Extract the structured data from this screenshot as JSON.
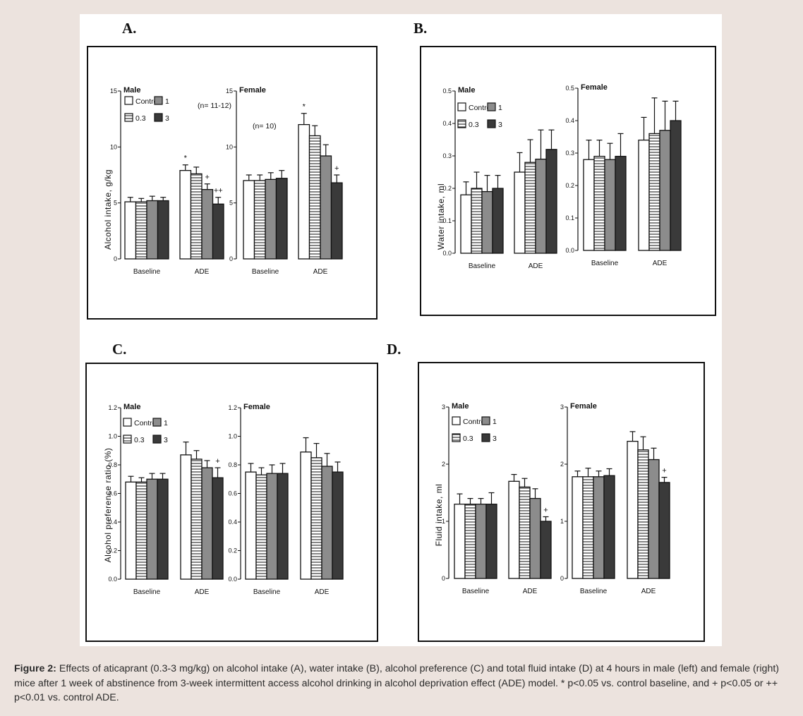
{
  "figure": {
    "caption_label": "Figure 2:",
    "caption_text": "Effects of aticaprant (0.3-3 mg/kg) on alcohol intake (A), water intake (B), alcohol preference (C) and total fluid intake (D) at 4 hours in male (left) and female (right) mice after 1 week of abstinence from 3-week intermittent access alcohol drinking in alcohol deprivation effect (ADE) model. * p<0.05 vs. control baseline, and + p<0.05 or ++ p<0.01 vs. control ADE."
  },
  "colors": {
    "control": "#ffffff",
    "d03": "#ffffff",
    "d1": "#8c8c8c",
    "d3": "#3a3a3a",
    "stroke": "#111111"
  },
  "chart_data": [
    {
      "panel": "A.",
      "type": "bar",
      "ylabel": "Alcohol intake, g/kg",
      "ylim": [
        0,
        15
      ],
      "yticks": [
        "0",
        "5",
        "10",
        "15"
      ],
      "categories": [
        "Baseline",
        "ADE"
      ],
      "legend_entries": [
        "Control",
        "0.3",
        "1",
        "3"
      ],
      "subplots": [
        {
          "title": "Male",
          "note": "(n= 11-12)",
          "series": [
            {
              "values": [
                5.1,
                7.9
              ],
              "errors": [
                0.4,
                0.5
              ]
            },
            {
              "values": [
                5.1,
                7.6
              ],
              "errors": [
                0.3,
                0.6
              ]
            },
            {
              "values": [
                5.2,
                6.2
              ],
              "errors": [
                0.4,
                0.5
              ]
            },
            {
              "values": [
                5.2,
                4.9
              ],
              "errors": [
                0.3,
                0.6
              ]
            }
          ],
          "annotations": [
            [
              "",
              "*"
            ],
            [
              "",
              ""
            ],
            [
              "",
              "+"
            ],
            [
              "",
              "++"
            ]
          ]
        },
        {
          "title": "Female",
          "note": "(n= 10)",
          "series": [
            {
              "values": [
                7.0,
                12.0
              ],
              "errors": [
                0.5,
                1.0
              ]
            },
            {
              "values": [
                7.0,
                11.0
              ],
              "errors": [
                0.5,
                0.9
              ]
            },
            {
              "values": [
                7.1,
                9.2
              ],
              "errors": [
                0.6,
                1.0
              ]
            },
            {
              "values": [
                7.2,
                6.8
              ],
              "errors": [
                0.7,
                0.7
              ]
            }
          ],
          "annotations": [
            [
              "",
              "*"
            ],
            [
              "",
              ""
            ],
            [
              "",
              ""
            ],
            [
              "",
              "+"
            ]
          ]
        }
      ]
    },
    {
      "panel": "B.",
      "type": "bar",
      "ylabel": "Water intake, ml",
      "ylim": [
        0,
        0.5
      ],
      "yticks": [
        "0.0",
        "0.1",
        "0.2",
        "0.3",
        "0.4",
        "0.5"
      ],
      "categories": [
        "Baseline",
        "ADE"
      ],
      "legend_entries": [
        "Control",
        "0.3",
        "1",
        "3"
      ],
      "subplots": [
        {
          "title": "Male",
          "note": "",
          "series": [
            {
              "values": [
                0.18,
                0.25
              ],
              "errors": [
                0.04,
                0.06
              ]
            },
            {
              "values": [
                0.2,
                0.28
              ],
              "errors": [
                0.05,
                0.07
              ]
            },
            {
              "values": [
                0.19,
                0.29
              ],
              "errors": [
                0.05,
                0.09
              ]
            },
            {
              "values": [
                0.2,
                0.32
              ],
              "errors": [
                0.04,
                0.06
              ]
            }
          ],
          "annotations": [
            [
              "",
              ""
            ],
            [
              "",
              ""
            ],
            [
              "",
              ""
            ],
            [
              "",
              ""
            ]
          ]
        },
        {
          "title": "Female",
          "note": "",
          "series": [
            {
              "values": [
                0.28,
                0.34
              ],
              "errors": [
                0.06,
                0.07
              ]
            },
            {
              "values": [
                0.29,
                0.36
              ],
              "errors": [
                0.05,
                0.11
              ]
            },
            {
              "values": [
                0.28,
                0.37
              ],
              "errors": [
                0.05,
                0.09
              ]
            },
            {
              "values": [
                0.29,
                0.4
              ],
              "errors": [
                0.07,
                0.06
              ]
            }
          ],
          "annotations": [
            [
              "",
              ""
            ],
            [
              "",
              ""
            ],
            [
              "",
              ""
            ],
            [
              "",
              ""
            ]
          ]
        }
      ]
    },
    {
      "panel": "C.",
      "type": "bar",
      "ylabel": "Alcohol preference ratio (%)",
      "ylim": [
        0,
        1.2
      ],
      "yticks": [
        "0.0",
        "0.2",
        "0.4",
        "0.6",
        "0.8",
        "1.0",
        "1.2"
      ],
      "categories": [
        "Baseline",
        "ADE"
      ],
      "legend_entries": [
        "Control",
        "0.3",
        "1",
        "3"
      ],
      "subplots": [
        {
          "title": "Male",
          "note": "",
          "series": [
            {
              "values": [
                0.68,
                0.87
              ],
              "errors": [
                0.04,
                0.09
              ]
            },
            {
              "values": [
                0.68,
                0.84
              ],
              "errors": [
                0.03,
                0.06
              ]
            },
            {
              "values": [
                0.7,
                0.78
              ],
              "errors": [
                0.04,
                0.05
              ]
            },
            {
              "values": [
                0.7,
                0.71
              ],
              "errors": [
                0.04,
                0.07
              ]
            }
          ],
          "annotations": [
            [
              "",
              ""
            ],
            [
              "",
              ""
            ],
            [
              "",
              ""
            ],
            [
              "",
              "+"
            ]
          ]
        },
        {
          "title": "Female",
          "note": "",
          "series": [
            {
              "values": [
                0.75,
                0.89
              ],
              "errors": [
                0.06,
                0.1
              ]
            },
            {
              "values": [
                0.73,
                0.85
              ],
              "errors": [
                0.05,
                0.1
              ]
            },
            {
              "values": [
                0.74,
                0.79
              ],
              "errors": [
                0.06,
                0.09
              ]
            },
            {
              "values": [
                0.74,
                0.75
              ],
              "errors": [
                0.07,
                0.07
              ]
            }
          ],
          "annotations": [
            [
              "",
              ""
            ],
            [
              "",
              ""
            ],
            [
              "",
              ""
            ],
            [
              "",
              ""
            ]
          ]
        }
      ]
    },
    {
      "panel": "D.",
      "type": "bar",
      "ylabel": "Fluid intake, ml",
      "ylim": [
        0,
        3
      ],
      "yticks": [
        "0",
        "1",
        "2",
        "3"
      ],
      "categories": [
        "Baseline",
        "ADE"
      ],
      "legend_entries": [
        "Control",
        "0.3",
        "1",
        "3"
      ],
      "subplots": [
        {
          "title": "Male",
          "note": "",
          "series": [
            {
              "values": [
                1.3,
                1.7
              ],
              "errors": [
                0.18,
                0.12
              ]
            },
            {
              "values": [
                1.3,
                1.6
              ],
              "errors": [
                0.1,
                0.15
              ]
            },
            {
              "values": [
                1.3,
                1.4
              ],
              "errors": [
                0.1,
                0.17
              ]
            },
            {
              "values": [
                1.3,
                1.0
              ],
              "errors": [
                0.2,
                0.08
              ]
            }
          ],
          "annotations": [
            [
              "",
              ""
            ],
            [
              "",
              ""
            ],
            [
              "",
              ""
            ],
            [
              "",
              "+"
            ]
          ]
        },
        {
          "title": "Female",
          "note": "",
          "series": [
            {
              "values": [
                1.78,
                2.4
              ],
              "errors": [
                0.1,
                0.17
              ]
            },
            {
              "values": [
                1.78,
                2.25
              ],
              "errors": [
                0.15,
                0.23
              ]
            },
            {
              "values": [
                1.78,
                2.08
              ],
              "errors": [
                0.1,
                0.2
              ]
            },
            {
              "values": [
                1.8,
                1.68
              ],
              "errors": [
                0.12,
                0.09
              ]
            }
          ],
          "annotations": [
            [
              "",
              ""
            ],
            [
              "",
              ""
            ],
            [
              "",
              ""
            ],
            [
              "",
              "+"
            ]
          ]
        }
      ]
    }
  ]
}
